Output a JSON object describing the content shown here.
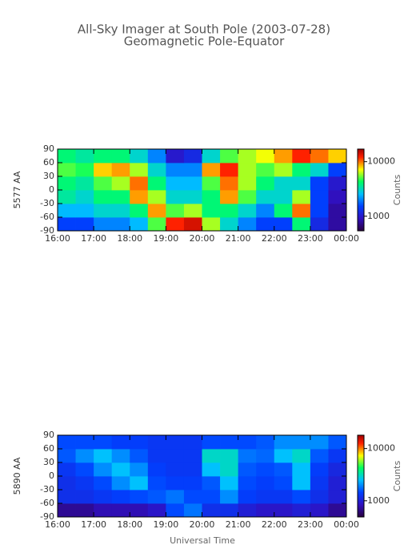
{
  "title": "All-Sky Imager at South Pole (2003-07-28)",
  "subtitle": "Geomagnetic Pole-Equator",
  "xlabel": "Universal Time",
  "chart_data": [
    {
      "type": "heatmap",
      "ylabel": "5577 AA",
      "colorbar_label": "Counts",
      "color_scale": "log",
      "xlim": [
        16,
        24
      ],
      "ylim": [
        -90,
        90
      ],
      "xticks": [
        {
          "value": 16,
          "label": "16:00"
        },
        {
          "value": 17,
          "label": "17:00"
        },
        {
          "value": 18,
          "label": "18:00"
        },
        {
          "value": 19,
          "label": "19:00"
        },
        {
          "value": 20,
          "label": "20:00"
        },
        {
          "value": 21,
          "label": "21:00"
        },
        {
          "value": 22,
          "label": "22:00"
        },
        {
          "value": 23,
          "label": "23:00"
        },
        {
          "value": 24,
          "label": "00:00"
        }
      ],
      "yticks": [
        -90,
        -60,
        -30,
        0,
        30,
        60,
        90
      ],
      "clim": [
        540,
        17000
      ],
      "cticks": [
        1000,
        10000
      ],
      "x_bins": [
        16,
        16.5,
        17,
        17.5,
        18,
        18.5,
        19,
        19.5,
        20,
        20.5,
        21,
        21.5,
        22,
        22.5,
        23,
        23.5,
        24
      ],
      "y_bins": [
        -90,
        -60,
        -30,
        0,
        30,
        60,
        90
      ],
      "z": [
        [
          1500,
          1500,
          2000,
          2000,
          2500,
          5000,
          12000,
          14000,
          6000,
          3000,
          2000,
          1500,
          1500,
          4000,
          1200,
          800
        ],
        [
          2500,
          2500,
          3000,
          3000,
          4000,
          9000,
          5000,
          6000,
          4000,
          4000,
          3000,
          2000,
          4000,
          10000,
          1500,
          800
        ],
        [
          3500,
          3000,
          4000,
          4000,
          9000,
          6000,
          3000,
          3000,
          4000,
          9000,
          5000,
          3000,
          3000,
          6000,
          1500,
          900
        ],
        [
          4000,
          3500,
          5000,
          6000,
          10000,
          4000,
          2500,
          2500,
          5000,
          10000,
          6000,
          4000,
          3000,
          3000,
          1500,
          1000
        ],
        [
          5000,
          4500,
          8000,
          9000,
          6000,
          3000,
          2000,
          2000,
          9000,
          12000,
          6000,
          5000,
          6000,
          4000,
          3000,
          1500
        ],
        [
          4000,
          3500,
          4000,
          4000,
          3000,
          2000,
          1000,
          1200,
          3000,
          5000,
          6000,
          7000,
          9000,
          12000,
          10000,
          8000
        ]
      ]
    },
    {
      "type": "heatmap",
      "ylabel": "5890 AA",
      "colorbar_label": "Counts",
      "color_scale": "log",
      "xlim": [
        16,
        24
      ],
      "ylim": [
        -90,
        90
      ],
      "xticks": [
        {
          "value": 16,
          "label": "16:00"
        },
        {
          "value": 17,
          "label": "17:00"
        },
        {
          "value": 18,
          "label": "18:00"
        },
        {
          "value": 19,
          "label": "19:00"
        },
        {
          "value": 20,
          "label": "20:00"
        },
        {
          "value": 21,
          "label": "21:00"
        },
        {
          "value": 22,
          "label": "22:00"
        },
        {
          "value": 23,
          "label": "23:00"
        },
        {
          "value": 24,
          "label": "00:00"
        }
      ],
      "yticks": [
        -90,
        -60,
        -30,
        0,
        30,
        60,
        90
      ],
      "clim": [
        490,
        18000
      ],
      "cticks": [
        1000,
        10000
      ],
      "x_bins": [
        16,
        16.5,
        17,
        17.5,
        18,
        18.5,
        19,
        19.5,
        20,
        20.5,
        21,
        21.5,
        22,
        22.5,
        23,
        23.5,
        24
      ],
      "y_bins": [
        -90,
        -60,
        -30,
        0,
        30,
        60,
        90
      ],
      "z": [
        [
          700,
          700,
          800,
          800,
          800,
          900,
          1500,
          1800,
          1200,
          1200,
          1000,
          900,
          900,
          1000,
          900,
          700
        ],
        [
          1200,
          1200,
          1300,
          1400,
          1500,
          1600,
          1800,
          1500,
          1500,
          2000,
          1400,
          1300,
          1300,
          1500,
          1200,
          1000
        ],
        [
          1200,
          1300,
          1500,
          2000,
          2500,
          1500,
          1400,
          1400,
          1600,
          2500,
          1500,
          1400,
          1500,
          2500,
          1300,
          1000
        ],
        [
          1300,
          1500,
          2000,
          2500,
          2000,
          1400,
          1300,
          1300,
          2500,
          3000,
          1600,
          1500,
          1600,
          2500,
          1400,
          1100
        ],
        [
          1600,
          2000,
          2500,
          2000,
          1600,
          1300,
          1300,
          1300,
          3000,
          3000,
          1800,
          1700,
          2500,
          3000,
          1600,
          1300
        ],
        [
          1500,
          1500,
          1500,
          1400,
          1400,
          1300,
          1300,
          1300,
          1500,
          1500,
          1500,
          1600,
          2000,
          2000,
          2000,
          1600
        ]
      ]
    }
  ]
}
